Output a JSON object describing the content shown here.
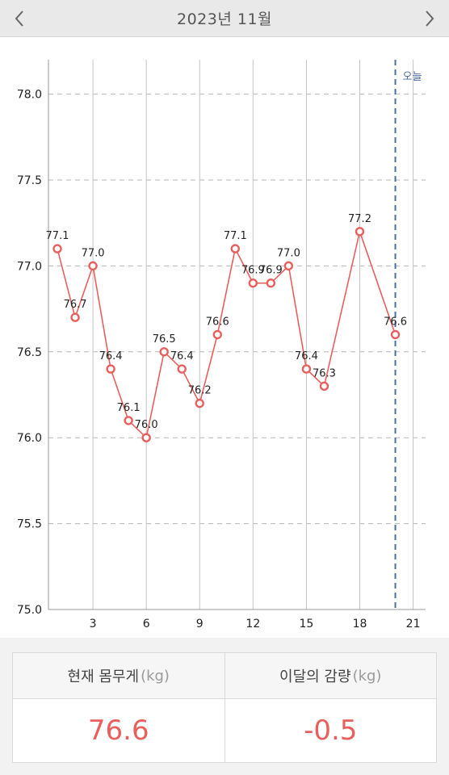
{
  "header": {
    "title": "2023년 11월",
    "prev_icon": "chevron-left-icon",
    "next_icon": "chevron-right-icon"
  },
  "chart_data": {
    "type": "line",
    "title": "",
    "xlabel": "",
    "ylabel": "",
    "xlim": [
      0.5,
      21.7
    ],
    "ylim": [
      75.0,
      78.2
    ],
    "x_ticks": [
      3,
      6,
      9,
      12,
      15,
      18,
      21
    ],
    "y_ticks": [
      "75.0",
      "75.5",
      "76.0",
      "76.5",
      "77.0",
      "77.5",
      "78.0"
    ],
    "grid": true,
    "line_color": "#e8605e",
    "series": [
      {
        "x": [
          1,
          2,
          3,
          4,
          5,
          6,
          7,
          8,
          9,
          10,
          11,
          12,
          13,
          14,
          15,
          16,
          18,
          20
        ],
        "values": [
          77.1,
          76.7,
          77.0,
          76.4,
          76.1,
          76.0,
          76.5,
          76.4,
          76.2,
          76.6,
          77.1,
          76.9,
          76.9,
          77.0,
          76.4,
          76.3,
          77.2,
          76.6
        ],
        "labels": [
          "77.1",
          "76.7",
          "77.0",
          "76.4",
          "76.1",
          "76.0",
          "76.5",
          "76.4",
          "76.2",
          "76.6",
          "77.1",
          "76.9",
          "76.9",
          "77.0",
          "76.4",
          "76.3",
          "77.2",
          "76.6"
        ]
      }
    ],
    "today_marker": {
      "x": 20,
      "label": "오늘",
      "color": "#4a6fa5"
    }
  },
  "stats": {
    "current": {
      "label": "현재 몸무게",
      "unit": "(kg)",
      "value": "76.6"
    },
    "change": {
      "label": "이달의 감량",
      "unit": "(kg)",
      "value": "-0.5"
    }
  }
}
